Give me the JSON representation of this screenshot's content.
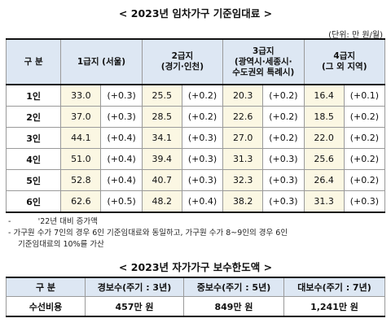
{
  "title1": "< 2023년 임차가구 기준임대료 >",
  "unit": "(단위: 만 원/월)",
  "rent_table": {
    "header": {
      "corner": "구  분",
      "g1": "1급지 (서울)",
      "g2a": "2급지",
      "g2b": "(경기·인천)",
      "g3a": "3급지",
      "g3b": "(광역시·세종시·",
      "g3c": "수도권외 특례시)",
      "g4a": "4급지",
      "g4b": "(그 외 지역)"
    },
    "rows": [
      {
        "label": "1인",
        "c": [
          {
            "v": "33.0",
            "d": "(+0.3)"
          },
          {
            "v": "25.5",
            "d": "(+0.2)"
          },
          {
            "v": "20.3",
            "d": "(+0.2)"
          },
          {
            "v": "16.4",
            "d": "(+0.1)"
          }
        ]
      },
      {
        "label": "2인",
        "c": [
          {
            "v": "37.0",
            "d": "(+0.3)"
          },
          {
            "v": "28.5",
            "d": "(+0.2)"
          },
          {
            "v": "22.6",
            "d": "(+0.2)"
          },
          {
            "v": "18.5",
            "d": "(+0.2)"
          }
        ]
      },
      {
        "label": "3인",
        "c": [
          {
            "v": "44.1",
            "d": "(+0.4)"
          },
          {
            "v": "34.1",
            "d": "(+0.3)"
          },
          {
            "v": "27.0",
            "d": "(+0.2)"
          },
          {
            "v": "22.0",
            "d": "(+0.2)"
          }
        ]
      },
      {
        "label": "4인",
        "c": [
          {
            "v": "51.0",
            "d": "(+0.4)"
          },
          {
            "v": "39.4",
            "d": "(+0.3)"
          },
          {
            "v": "31.3",
            "d": "(+0.3)"
          },
          {
            "v": "25.6",
            "d": "(+0.2)"
          }
        ]
      },
      {
        "label": "5인",
        "c": [
          {
            "v": "52.8",
            "d": "(+0.4)"
          },
          {
            "v": "40.7",
            "d": "(+0.3)"
          },
          {
            "v": "32.3",
            "d": "(+0.3)"
          },
          {
            "v": "26.4",
            "d": "(+0.2)"
          }
        ]
      },
      {
        "label": "6인",
        "c": [
          {
            "v": "62.6",
            "d": "(+0.5)"
          },
          {
            "v": "48.2",
            "d": "(+0.4)"
          },
          {
            "v": "38.2",
            "d": "(+0.3)"
          },
          {
            "v": "31.3",
            "d": "(+0.3)"
          }
        ]
      }
    ]
  },
  "notes": {
    "n1_dash": "-",
    "n1": "'22년 대비 증가액",
    "n2": "- 가구원 수가 7인의 경우 6인 기준임대료와 동일하고, 가구원 수가 8~9인의 경우 6인",
    "n3": "기준임대료의 10%를 가산"
  },
  "title2": "< 2023년 자가가구 보수한도액 >",
  "repair_table": {
    "header": [
      "구  분",
      "경보수(주기 : 3년)",
      "중보수(주기 : 5년)",
      "대보수(주기 : 7년)"
    ],
    "row": [
      "수선비용",
      "457만 원",
      "849만 원",
      "1,241만 원"
    ]
  }
}
